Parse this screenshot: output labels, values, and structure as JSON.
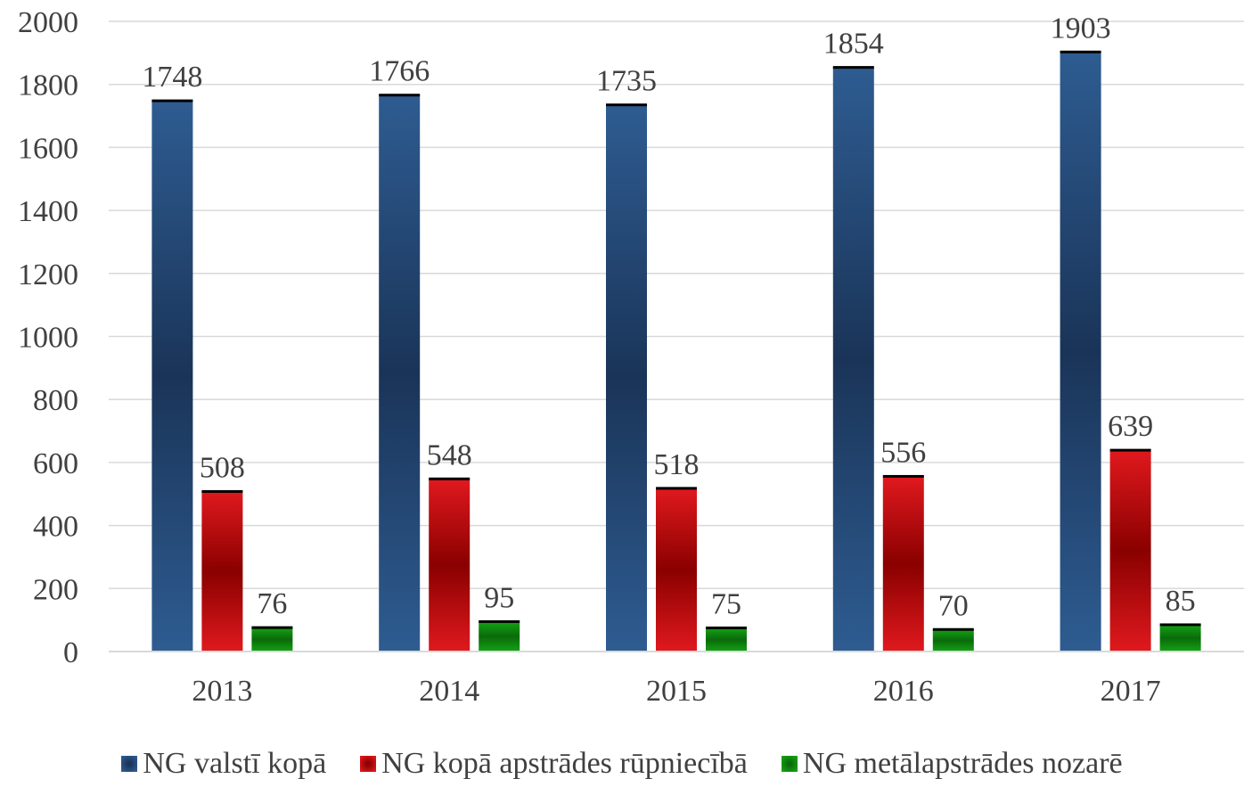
{
  "chart_data": {
    "type": "bar",
    "categories": [
      "2013",
      "2014",
      "2015",
      "2016",
      "2017"
    ],
    "series": [
      {
        "name": "NG valstī kopā",
        "values": [
          1748,
          1766,
          1735,
          1854,
          1903
        ],
        "color": "#2e5c91",
        "dark": "#1a3458"
      },
      {
        "name": "NG kopā apstrādes rūpniecībā",
        "values": [
          508,
          548,
          518,
          556,
          639
        ],
        "color": "#e0191e",
        "dark": "#8a0000"
      },
      {
        "name": "NG metālapstrādes nozarē",
        "values": [
          76,
          95,
          75,
          70,
          85
        ],
        "color": "#14a314",
        "dark": "#0a6a0a"
      }
    ],
    "ylim": [
      0,
      2000
    ],
    "yticks": [
      "0",
      "200",
      "400",
      "600",
      "800",
      "1000",
      "1200",
      "1400",
      "1600",
      "1800",
      "2000"
    ],
    "grid": true,
    "legend_position": "bottom",
    "data_labels": true
  }
}
